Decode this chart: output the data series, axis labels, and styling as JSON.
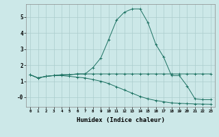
{
  "xlabel": "Humidex (Indice chaleur)",
  "xlim": [
    -0.5,
    23.5
  ],
  "ylim": [
    -0.6,
    5.8
  ],
  "bg_color": "#cce8e8",
  "grid_color": "#aacccc",
  "line_color": "#1a7060",
  "lines": [
    [
      1.4,
      1.2,
      1.3,
      1.35,
      1.4,
      1.4,
      1.45,
      1.45,
      1.85,
      2.45,
      3.6,
      4.8,
      5.3,
      5.5,
      5.5,
      4.65,
      3.3,
      2.5,
      1.35,
      1.35,
      0.7,
      -0.1,
      -0.15,
      -0.15
    ],
    [
      1.4,
      1.2,
      1.3,
      1.35,
      1.4,
      1.4,
      1.45,
      1.45,
      1.45,
      1.45,
      1.45,
      1.45,
      1.45,
      1.45,
      1.45,
      1.45,
      1.45,
      1.45,
      1.45,
      1.45,
      1.45,
      1.45,
      1.45,
      1.45
    ],
    [
      1.4,
      1.2,
      1.3,
      1.35,
      1.35,
      1.3,
      1.25,
      1.2,
      1.1,
      1.0,
      0.85,
      0.65,
      0.45,
      0.25,
      0.05,
      -0.1,
      -0.2,
      -0.28,
      -0.35,
      -0.38,
      -0.4,
      -0.42,
      -0.43,
      -0.44
    ]
  ],
  "xticks": [
    0,
    1,
    2,
    3,
    4,
    5,
    6,
    7,
    8,
    9,
    10,
    11,
    12,
    13,
    14,
    15,
    16,
    17,
    18,
    19,
    20,
    21,
    22,
    23
  ],
  "yticks": [
    0,
    1,
    2,
    3,
    4,
    5
  ],
  "ytick_labels": [
    "-0",
    "1",
    "2",
    "3",
    "4",
    "5"
  ]
}
